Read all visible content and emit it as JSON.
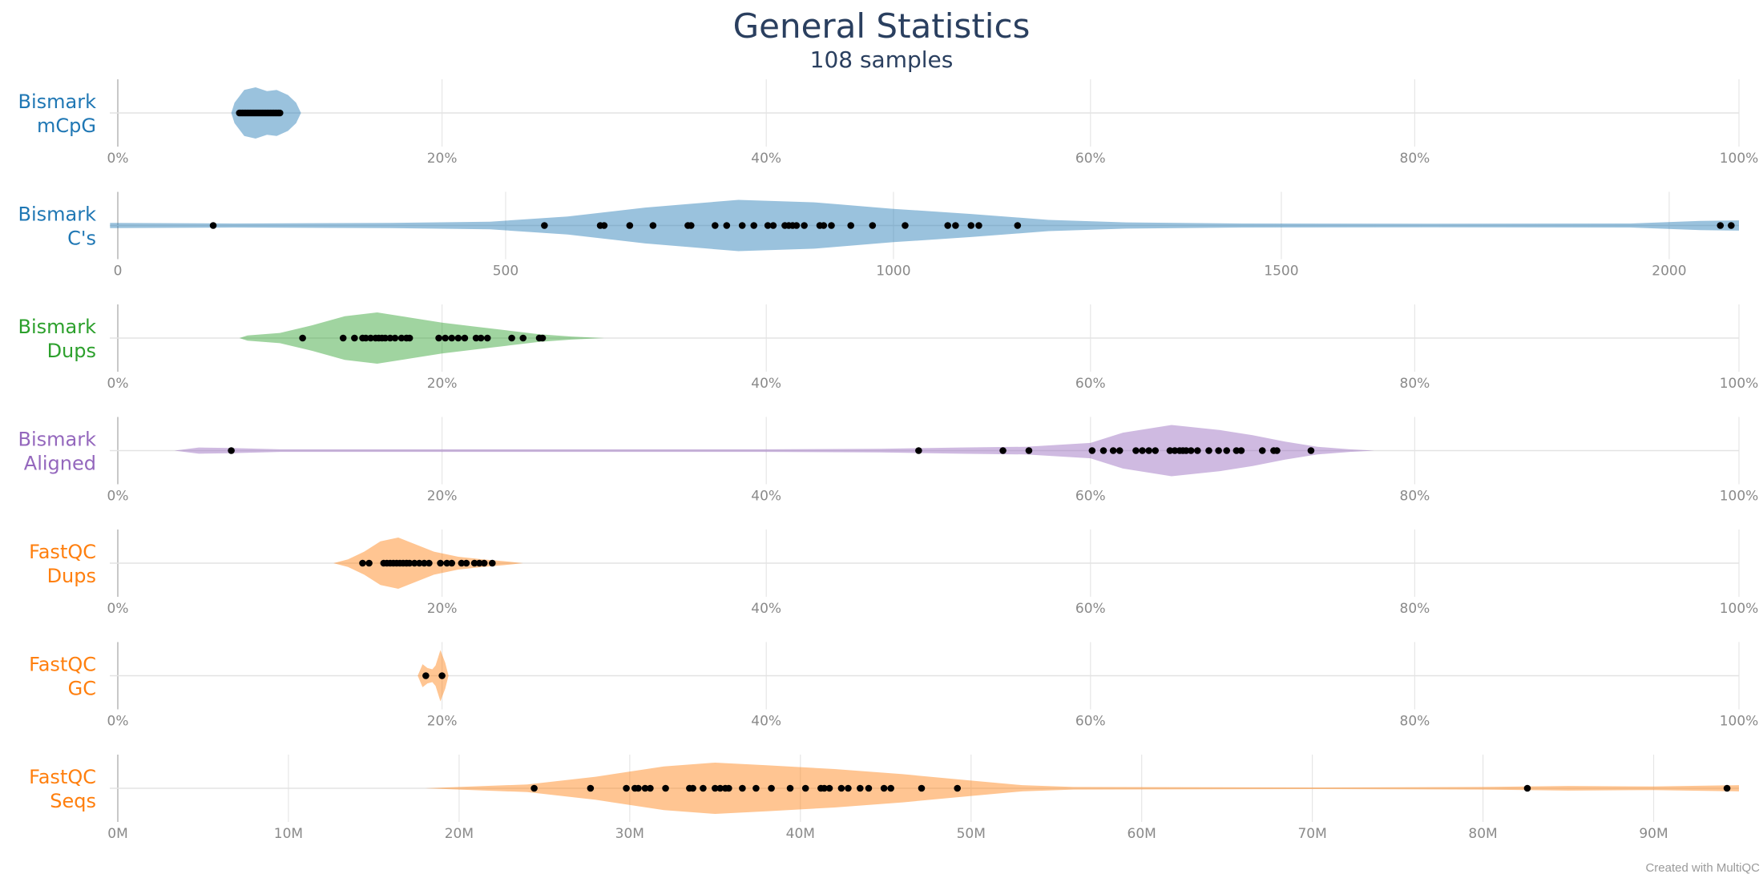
{
  "title": "General Statistics",
  "subtitle": "108 samples",
  "credit": "Created with MultiQC",
  "chart_data": [
    {
      "type": "violin",
      "label": [
        "Bismark",
        "mCpG"
      ],
      "color": "#1f77b4",
      "xlim": [
        0,
        100
      ],
      "ticks": [
        0,
        20,
        40,
        60,
        80,
        100
      ],
      "tick_labels": [
        "0%",
        "20%",
        "40%",
        "60%",
        "80%",
        "100%"
      ],
      "density": [
        [
          7,
          0
        ],
        [
          7.2,
          0.4
        ],
        [
          7.8,
          0.9
        ],
        [
          8.5,
          1.0
        ],
        [
          9.2,
          0.85
        ],
        [
          9.8,
          0.9
        ],
        [
          10.5,
          0.7
        ],
        [
          11,
          0.4
        ],
        [
          11.3,
          0
        ]
      ],
      "points": [
        7.5,
        7.6,
        7.7,
        7.8,
        7.9,
        8.0,
        8.1,
        8.2,
        8.3,
        8.4,
        8.5,
        8.6,
        8.7,
        8.8,
        8.9,
        9.0,
        9.1,
        9.2,
        9.3,
        9.4,
        9.5,
        9.6,
        9.7,
        9.8,
        9.9,
        10.0
      ]
    },
    {
      "type": "violin",
      "label": [
        "Bismark",
        "C's"
      ],
      "color": "#1f77b4",
      "xlim": [
        0,
        2090
      ],
      "ticks": [
        0,
        500,
        1000,
        1500,
        2000
      ],
      "tick_labels": [
        "0",
        "500",
        "1000",
        "1500",
        "2000"
      ],
      "density": [
        [
          -10,
          0.1
        ],
        [
          150,
          0.08
        ],
        [
          350,
          0.1
        ],
        [
          480,
          0.15
        ],
        [
          580,
          0.35
        ],
        [
          680,
          0.7
        ],
        [
          800,
          1.0
        ],
        [
          900,
          0.9
        ],
        [
          1000,
          0.65
        ],
        [
          1100,
          0.45
        ],
        [
          1200,
          0.22
        ],
        [
          1300,
          0.12
        ],
        [
          1450,
          0.08
        ],
        [
          1700,
          0.07
        ],
        [
          1950,
          0.08
        ],
        [
          2040,
          0.18
        ],
        [
          2090,
          0.2
        ]
      ],
      "points": [
        123,
        550,
        622,
        627,
        660,
        690,
        735,
        739,
        770,
        785,
        805,
        820,
        838,
        845,
        860,
        865,
        870,
        875,
        885,
        905,
        910,
        920,
        945,
        973,
        1015,
        1070,
        1080,
        1100,
        1110,
        1160,
        2066,
        2080
      ]
    },
    {
      "type": "violin",
      "label": [
        "Bismark",
        "Dups"
      ],
      "color": "#2ca02c",
      "xlim": [
        0,
        100
      ],
      "ticks": [
        0,
        20,
        40,
        60,
        80,
        100
      ],
      "tick_labels": [
        "0%",
        "20%",
        "40%",
        "60%",
        "80%",
        "100%"
      ],
      "density": [
        [
          7.5,
          0
        ],
        [
          8,
          0.1
        ],
        [
          10,
          0.2
        ],
        [
          12,
          0.5
        ],
        [
          14,
          0.85
        ],
        [
          16,
          1.0
        ],
        [
          18,
          0.8
        ],
        [
          20,
          0.6
        ],
        [
          22,
          0.45
        ],
        [
          24,
          0.3
        ],
        [
          26,
          0.15
        ],
        [
          28,
          0.06
        ],
        [
          30,
          0
        ]
      ],
      "points": [
        11.4,
        13.9,
        14.6,
        15.1,
        15.3,
        15.6,
        15.9,
        16.1,
        16.3,
        16.5,
        16.8,
        17.1,
        17.5,
        17.8,
        18.0,
        19.8,
        20.2,
        20.6,
        21.0,
        21.4,
        22.1,
        22.4,
        22.8,
        24.3,
        25.0,
        26.0,
        26.2
      ]
    },
    {
      "type": "violin",
      "label": [
        "Bismark",
        "Aligned"
      ],
      "color": "#9467bd",
      "xlim": [
        0,
        100
      ],
      "ticks": [
        0,
        20,
        40,
        60,
        80,
        100
      ],
      "tick_labels": [
        "0%",
        "20%",
        "40%",
        "60%",
        "80%",
        "100%"
      ],
      "density": [
        [
          3.5,
          0
        ],
        [
          5,
          0.12
        ],
        [
          7,
          0.1
        ],
        [
          10,
          0.05
        ],
        [
          20,
          0.05
        ],
        [
          40,
          0.05
        ],
        [
          47,
          0.07
        ],
        [
          52,
          0.12
        ],
        [
          56,
          0.15
        ],
        [
          60,
          0.3
        ],
        [
          62,
          0.7
        ],
        [
          65,
          1.0
        ],
        [
          68,
          0.8
        ],
        [
          70,
          0.6
        ],
        [
          72,
          0.35
        ],
        [
          74,
          0.15
        ],
        [
          76,
          0.05
        ],
        [
          77.5,
          0
        ]
      ],
      "points": [
        7.0,
        49.4,
        54.6,
        56.2,
        60.1,
        60.8,
        61.4,
        61.8,
        62.8,
        63.2,
        63.6,
        64.0,
        64.9,
        65.2,
        65.5,
        65.7,
        65.9,
        66.2,
        66.6,
        67.3,
        67.9,
        68.4,
        69.0,
        69.3,
        70.6,
        71.3,
        71.5,
        73.6
      ]
    },
    {
      "type": "violin",
      "label": [
        "FastQC",
        "Dups"
      ],
      "color": "#ff7f0e",
      "xlim": [
        0,
        100
      ],
      "ticks": [
        0,
        20,
        40,
        60,
        80,
        100
      ],
      "tick_labels": [
        "0%",
        "20%",
        "40%",
        "60%",
        "80%",
        "100%"
      ],
      "density": [
        [
          13.3,
          0
        ],
        [
          14.2,
          0.15
        ],
        [
          15.2,
          0.45
        ],
        [
          16.2,
          0.85
        ],
        [
          17.3,
          1.0
        ],
        [
          18.3,
          0.75
        ],
        [
          19.5,
          0.45
        ],
        [
          21,
          0.25
        ],
        [
          22.5,
          0.15
        ],
        [
          23.8,
          0.08
        ],
        [
          25,
          0
        ]
      ],
      "points": [
        15.1,
        15.5,
        16.4,
        16.6,
        16.8,
        17.0,
        17.2,
        17.4,
        17.6,
        17.8,
        18.0,
        18.3,
        18.6,
        18.9,
        19.2,
        19.9,
        20.3,
        20.6,
        21.2,
        21.5,
        22.0,
        22.3,
        22.6,
        23.1
      ]
    },
    {
      "type": "violin",
      "label": [
        "FastQC",
        "GC"
      ],
      "color": "#ff7f0e",
      "xlim": [
        0,
        100
      ],
      "ticks": [
        0,
        20,
        40,
        60,
        80,
        100
      ],
      "tick_labels": [
        "0%",
        "20%",
        "40%",
        "60%",
        "80%",
        "100%"
      ],
      "density": [
        [
          18.5,
          0
        ],
        [
          18.8,
          0.45
        ],
        [
          19.1,
          0.3
        ],
        [
          19.4,
          0.25
        ],
        [
          19.6,
          0.4
        ],
        [
          19.9,
          1.0
        ],
        [
          20.2,
          0.5
        ],
        [
          20.4,
          0
        ]
      ],
      "points": [
        19.0,
        20.0
      ]
    },
    {
      "type": "violin",
      "label": [
        "FastQC",
        "Seqs"
      ],
      "color": "#ff7f0e",
      "xlim": [
        0,
        95
      ],
      "ticks": [
        0,
        10,
        20,
        30,
        40,
        50,
        60,
        70,
        80,
        90
      ],
      "tick_labels": [
        "0M",
        "10M",
        "20M",
        "30M",
        "40M",
        "50M",
        "60M",
        "70M",
        "80M",
        "90M"
      ],
      "density": [
        [
          18,
          0
        ],
        [
          20,
          0.05
        ],
        [
          24,
          0.15
        ],
        [
          28,
          0.45
        ],
        [
          32,
          0.85
        ],
        [
          35,
          1.0
        ],
        [
          38,
          0.9
        ],
        [
          42,
          0.75
        ],
        [
          46,
          0.55
        ],
        [
          50,
          0.3
        ],
        [
          53,
          0.12
        ],
        [
          56,
          0.05
        ],
        [
          70,
          0.03
        ],
        [
          80,
          0.05
        ],
        [
          85,
          0.09
        ],
        [
          90,
          0.07
        ],
        [
          95,
          0.12
        ]
      ],
      "points": [
        24.4,
        27.7,
        29.8,
        30.3,
        30.5,
        30.9,
        31.2,
        32.1,
        33.5,
        33.7,
        34.3,
        35.0,
        35.3,
        35.6,
        35.8,
        36.6,
        37.4,
        38.3,
        39.4,
        40.3,
        41.2,
        41.4,
        41.7,
        42.4,
        42.8,
        43.5,
        44.0,
        44.9,
        45.3,
        47.1,
        49.2,
        82.6,
        94.3
      ]
    }
  ]
}
